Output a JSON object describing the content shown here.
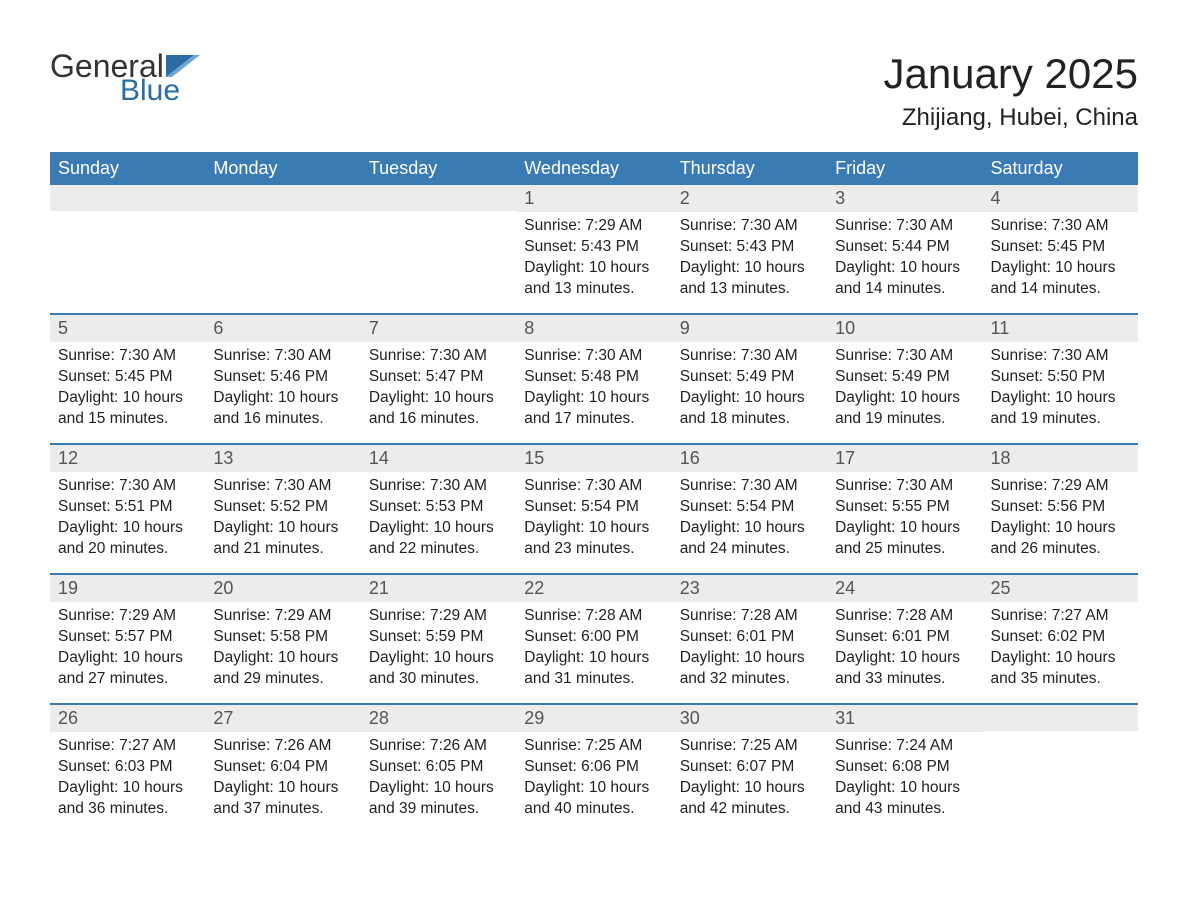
{
  "brand": {
    "general": "General",
    "blue": "Blue"
  },
  "colors": {
    "header_bg": "#3b7bb3",
    "header_text": "#ffffff",
    "daynum_bg": "#ececec",
    "daynum_text": "#555555",
    "body_text": "#222222",
    "brand_blue": "#2b6ca3",
    "week_divider": "#3b7bb3",
    "page_bg": "#ffffff"
  },
  "typography": {
    "month_title_pt": 42,
    "location_pt": 24,
    "dow_pt": 18,
    "daynum_pt": 18,
    "body_pt": 15.5,
    "font_family": "Arial"
  },
  "title": "January 2025",
  "location": "Zhijiang, Hubei, China",
  "days_of_week": [
    "Sunday",
    "Monday",
    "Tuesday",
    "Wednesday",
    "Thursday",
    "Friday",
    "Saturday"
  ],
  "weeks": [
    [
      {
        "n": "",
        "sunrise": "",
        "sunset": "",
        "daylight": ""
      },
      {
        "n": "",
        "sunrise": "",
        "sunset": "",
        "daylight": ""
      },
      {
        "n": "",
        "sunrise": "",
        "sunset": "",
        "daylight": ""
      },
      {
        "n": "1",
        "sunrise": "Sunrise: 7:29 AM",
        "sunset": "Sunset: 5:43 PM",
        "daylight": "Daylight: 10 hours and 13 minutes."
      },
      {
        "n": "2",
        "sunrise": "Sunrise: 7:30 AM",
        "sunset": "Sunset: 5:43 PM",
        "daylight": "Daylight: 10 hours and 13 minutes."
      },
      {
        "n": "3",
        "sunrise": "Sunrise: 7:30 AM",
        "sunset": "Sunset: 5:44 PM",
        "daylight": "Daylight: 10 hours and 14 minutes."
      },
      {
        "n": "4",
        "sunrise": "Sunrise: 7:30 AM",
        "sunset": "Sunset: 5:45 PM",
        "daylight": "Daylight: 10 hours and 14 minutes."
      }
    ],
    [
      {
        "n": "5",
        "sunrise": "Sunrise: 7:30 AM",
        "sunset": "Sunset: 5:45 PM",
        "daylight": "Daylight: 10 hours and 15 minutes."
      },
      {
        "n": "6",
        "sunrise": "Sunrise: 7:30 AM",
        "sunset": "Sunset: 5:46 PM",
        "daylight": "Daylight: 10 hours and 16 minutes."
      },
      {
        "n": "7",
        "sunrise": "Sunrise: 7:30 AM",
        "sunset": "Sunset: 5:47 PM",
        "daylight": "Daylight: 10 hours and 16 minutes."
      },
      {
        "n": "8",
        "sunrise": "Sunrise: 7:30 AM",
        "sunset": "Sunset: 5:48 PM",
        "daylight": "Daylight: 10 hours and 17 minutes."
      },
      {
        "n": "9",
        "sunrise": "Sunrise: 7:30 AM",
        "sunset": "Sunset: 5:49 PM",
        "daylight": "Daylight: 10 hours and 18 minutes."
      },
      {
        "n": "10",
        "sunrise": "Sunrise: 7:30 AM",
        "sunset": "Sunset: 5:49 PM",
        "daylight": "Daylight: 10 hours and 19 minutes."
      },
      {
        "n": "11",
        "sunrise": "Sunrise: 7:30 AM",
        "sunset": "Sunset: 5:50 PM",
        "daylight": "Daylight: 10 hours and 19 minutes."
      }
    ],
    [
      {
        "n": "12",
        "sunrise": "Sunrise: 7:30 AM",
        "sunset": "Sunset: 5:51 PM",
        "daylight": "Daylight: 10 hours and 20 minutes."
      },
      {
        "n": "13",
        "sunrise": "Sunrise: 7:30 AM",
        "sunset": "Sunset: 5:52 PM",
        "daylight": "Daylight: 10 hours and 21 minutes."
      },
      {
        "n": "14",
        "sunrise": "Sunrise: 7:30 AM",
        "sunset": "Sunset: 5:53 PM",
        "daylight": "Daylight: 10 hours and 22 minutes."
      },
      {
        "n": "15",
        "sunrise": "Sunrise: 7:30 AM",
        "sunset": "Sunset: 5:54 PM",
        "daylight": "Daylight: 10 hours and 23 minutes."
      },
      {
        "n": "16",
        "sunrise": "Sunrise: 7:30 AM",
        "sunset": "Sunset: 5:54 PM",
        "daylight": "Daylight: 10 hours and 24 minutes."
      },
      {
        "n": "17",
        "sunrise": "Sunrise: 7:30 AM",
        "sunset": "Sunset: 5:55 PM",
        "daylight": "Daylight: 10 hours and 25 minutes."
      },
      {
        "n": "18",
        "sunrise": "Sunrise: 7:29 AM",
        "sunset": "Sunset: 5:56 PM",
        "daylight": "Daylight: 10 hours and 26 minutes."
      }
    ],
    [
      {
        "n": "19",
        "sunrise": "Sunrise: 7:29 AM",
        "sunset": "Sunset: 5:57 PM",
        "daylight": "Daylight: 10 hours and 27 minutes."
      },
      {
        "n": "20",
        "sunrise": "Sunrise: 7:29 AM",
        "sunset": "Sunset: 5:58 PM",
        "daylight": "Daylight: 10 hours and 29 minutes."
      },
      {
        "n": "21",
        "sunrise": "Sunrise: 7:29 AM",
        "sunset": "Sunset: 5:59 PM",
        "daylight": "Daylight: 10 hours and 30 minutes."
      },
      {
        "n": "22",
        "sunrise": "Sunrise: 7:28 AM",
        "sunset": "Sunset: 6:00 PM",
        "daylight": "Daylight: 10 hours and 31 minutes."
      },
      {
        "n": "23",
        "sunrise": "Sunrise: 7:28 AM",
        "sunset": "Sunset: 6:01 PM",
        "daylight": "Daylight: 10 hours and 32 minutes."
      },
      {
        "n": "24",
        "sunrise": "Sunrise: 7:28 AM",
        "sunset": "Sunset: 6:01 PM",
        "daylight": "Daylight: 10 hours and 33 minutes."
      },
      {
        "n": "25",
        "sunrise": "Sunrise: 7:27 AM",
        "sunset": "Sunset: 6:02 PM",
        "daylight": "Daylight: 10 hours and 35 minutes."
      }
    ],
    [
      {
        "n": "26",
        "sunrise": "Sunrise: 7:27 AM",
        "sunset": "Sunset: 6:03 PM",
        "daylight": "Daylight: 10 hours and 36 minutes."
      },
      {
        "n": "27",
        "sunrise": "Sunrise: 7:26 AM",
        "sunset": "Sunset: 6:04 PM",
        "daylight": "Daylight: 10 hours and 37 minutes."
      },
      {
        "n": "28",
        "sunrise": "Sunrise: 7:26 AM",
        "sunset": "Sunset: 6:05 PM",
        "daylight": "Daylight: 10 hours and 39 minutes."
      },
      {
        "n": "29",
        "sunrise": "Sunrise: 7:25 AM",
        "sunset": "Sunset: 6:06 PM",
        "daylight": "Daylight: 10 hours and 40 minutes."
      },
      {
        "n": "30",
        "sunrise": "Sunrise: 7:25 AM",
        "sunset": "Sunset: 6:07 PM",
        "daylight": "Daylight: 10 hours and 42 minutes."
      },
      {
        "n": "31",
        "sunrise": "Sunrise: 7:24 AM",
        "sunset": "Sunset: 6:08 PM",
        "daylight": "Daylight: 10 hours and 43 minutes."
      },
      {
        "n": "",
        "sunrise": "",
        "sunset": "",
        "daylight": ""
      }
    ]
  ]
}
